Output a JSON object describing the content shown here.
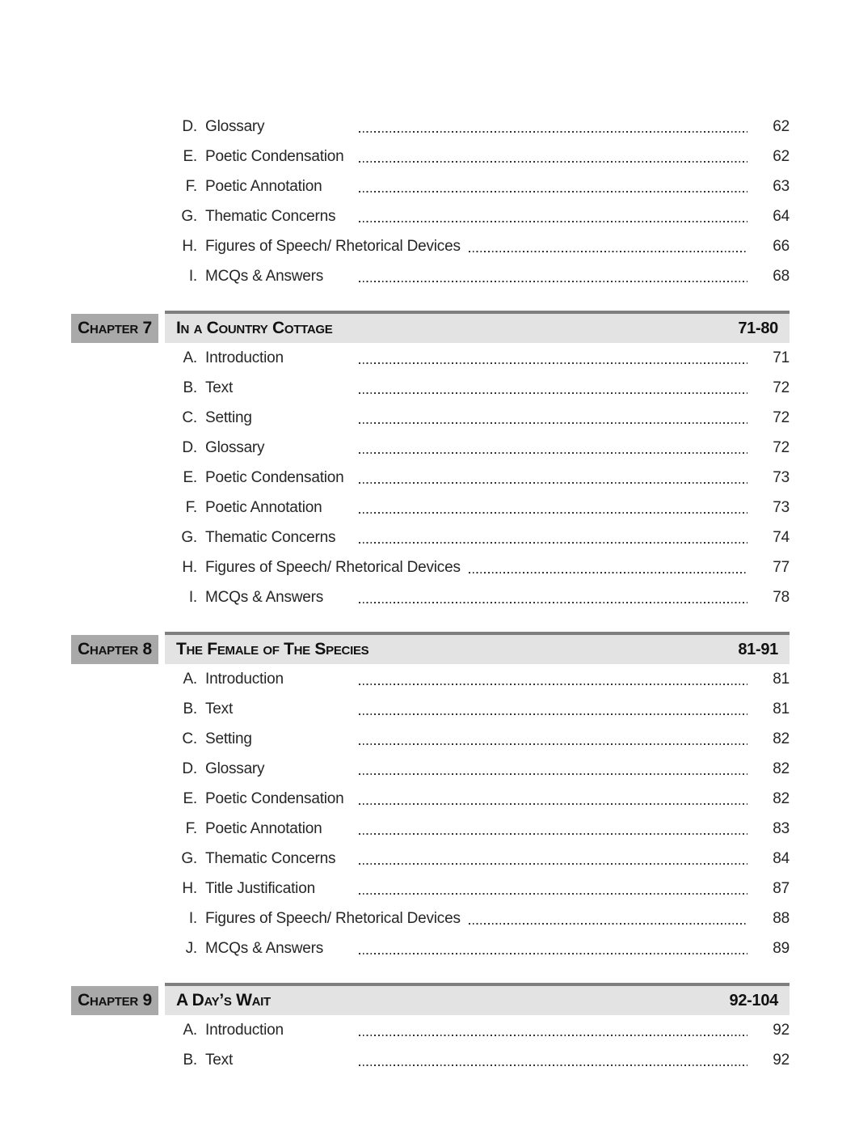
{
  "colors": {
    "chapter_label_bg": "#a9a9a9",
    "chapter_band_bg": "#e3e3e3",
    "chapter_band_top_line": "#7f7f7f",
    "text_color": "#262626",
    "leader_color": "#333333"
  },
  "sections": [
    {
      "items": [
        {
          "letter": "D.",
          "label": "Glossary",
          "page": "62"
        },
        {
          "letter": "E.",
          "label": "Poetic Condensation",
          "page": "62"
        },
        {
          "letter": "F.",
          "label": "Poetic Annotation",
          "page": "63"
        },
        {
          "letter": "G.",
          "label": "Thematic Concerns",
          "page": "64"
        },
        {
          "letter": "H.",
          "label": "Figures of Speech/ Rhetorical Devices",
          "page": "66"
        },
        {
          "letter": "I.",
          "label": "MCQs & Answers",
          "page": "68"
        }
      ]
    },
    {
      "chapter_label": "Chapter 7",
      "title": "In a Country Cottage",
      "page_range": "71-80",
      "items": [
        {
          "letter": "A.",
          "label": "Introduction",
          "page": "71"
        },
        {
          "letter": "B.",
          "label": "Text",
          "page": "72"
        },
        {
          "letter": "C.",
          "label": "Setting",
          "page": "72"
        },
        {
          "letter": "D.",
          "label": "Glossary",
          "page": "72"
        },
        {
          "letter": "E.",
          "label": "Poetic Condensation",
          "page": "73"
        },
        {
          "letter": "F.",
          "label": "Poetic Annotation",
          "page": "73"
        },
        {
          "letter": "G.",
          "label": "Thematic Concerns",
          "page": "74"
        },
        {
          "letter": "H.",
          "label": "Figures of Speech/ Rhetorical Devices",
          "page": "77"
        },
        {
          "letter": "I.",
          "label": "MCQs & Answers",
          "page": "78"
        }
      ]
    },
    {
      "chapter_label": "Chapter 8",
      "title": "The Female of The Species",
      "page_range": "81-91",
      "items": [
        {
          "letter": "A.",
          "label": "Introduction",
          "page": "81"
        },
        {
          "letter": "B.",
          "label": "Text",
          "page": "81"
        },
        {
          "letter": "C.",
          "label": "Setting",
          "page": "82"
        },
        {
          "letter": "D.",
          "label": "Glossary",
          "page": "82"
        },
        {
          "letter": "E.",
          "label": "Poetic Condensation",
          "page": "82"
        },
        {
          "letter": "F.",
          "label": "Poetic Annotation",
          "page": "83"
        },
        {
          "letter": "G.",
          "label": "Thematic Concerns",
          "page": "84"
        },
        {
          "letter": "H.",
          "label": "Title Justification",
          "page": "87"
        },
        {
          "letter": "I.",
          "label": "Figures of Speech/ Rhetorical Devices",
          "page": "88"
        },
        {
          "letter": "J.",
          "label": "MCQs & Answers",
          "page": "89"
        }
      ]
    },
    {
      "chapter_label": "Chapter 9",
      "title": "A Day’s Wait",
      "page_range": "92-104",
      "items": [
        {
          "letter": "A.",
          "label": "Introduction",
          "page": "92"
        },
        {
          "letter": "B.",
          "label": "Text",
          "page": "92"
        }
      ]
    }
  ]
}
